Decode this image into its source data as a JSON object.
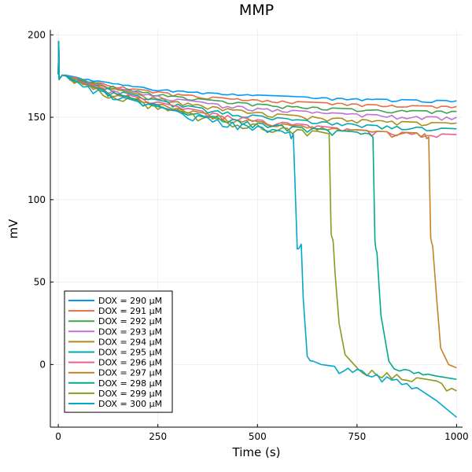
{
  "chart_data": {
    "type": "line",
    "title": "MMP",
    "xlabel": "Time (s)",
    "ylabel": "mV",
    "xlim": [
      -20,
      1015
    ],
    "ylim": [
      -38,
      203
    ],
    "xticks": [
      0,
      250,
      500,
      750,
      1000
    ],
    "xtick_labels": [
      "0",
      "250",
      "500",
      "750",
      "1000"
    ],
    "yticks": [
      0,
      50,
      100,
      150,
      200
    ],
    "ytick_labels": [
      "0",
      "50",
      "100",
      "150",
      "200"
    ],
    "grid": true,
    "legend_position": "bottom-left",
    "series": [
      {
        "name": "DOX = 290 µM",
        "color": "#009AFA",
        "x": [
          0,
          1,
          2,
          5,
          10,
          20,
          50,
          100,
          200,
          300,
          400,
          500,
          600,
          700,
          800,
          900,
          1000
        ],
        "values": [
          176,
          196,
          173,
          174,
          175.5,
          175.5,
          174,
          172,
          168.5,
          166,
          164.5,
          163.5,
          162.5,
          161.5,
          161,
          160.5,
          160
        ]
      },
      {
        "name": "DOX = 291 µM",
        "color": "#E36F47",
        "x": [
          0,
          1,
          2,
          5,
          10,
          20,
          50,
          100,
          200,
          300,
          400,
          500,
          600,
          700,
          800,
          900,
          1000
        ],
        "values": [
          176,
          196,
          173,
          174,
          175.5,
          175.5,
          173.5,
          171,
          167,
          164,
          162,
          160.5,
          159.5,
          158.5,
          157.5,
          157,
          156.5
        ]
      },
      {
        "name": "DOX = 292 µM",
        "color": "#3EA44E",
        "x": [
          0,
          1,
          2,
          5,
          10,
          20,
          50,
          100,
          200,
          300,
          400,
          500,
          600,
          700,
          800,
          900,
          1000
        ],
        "values": [
          176,
          196,
          173,
          174,
          175.5,
          175.5,
          173.5,
          170.5,
          166,
          162.5,
          160,
          158,
          156.5,
          155.5,
          154.5,
          154,
          153.5
        ]
      },
      {
        "name": "DOX = 293 µM",
        "color": "#C271D2",
        "x": [
          0,
          1,
          2,
          5,
          10,
          20,
          50,
          100,
          200,
          300,
          400,
          500,
          600,
          700,
          800,
          900,
          1000
        ],
        "values": [
          176,
          196,
          173,
          174,
          175.5,
          175,
          173,
          170,
          165,
          161,
          158,
          155.5,
          154,
          152.5,
          151.5,
          150.5,
          150
        ]
      },
      {
        "name": "DOX = 294 µM",
        "color": "#AC8D18",
        "x": [
          0,
          1,
          2,
          5,
          10,
          20,
          50,
          100,
          200,
          300,
          400,
          500,
          600,
          700,
          800,
          900,
          1000
        ],
        "values": [
          176,
          196,
          173,
          174,
          175.5,
          175,
          172.5,
          169.5,
          164,
          159.5,
          156,
          153,
          151,
          149.5,
          148,
          147,
          146.5
        ]
      },
      {
        "name": "DOX = 295 µM",
        "color": "#00A9AD",
        "x": [
          0,
          1,
          2,
          5,
          10,
          20,
          50,
          100,
          200,
          300,
          400,
          500,
          600,
          700,
          800,
          900,
          1000
        ],
        "values": [
          176,
          196,
          173,
          174,
          175.5,
          175,
          172.5,
          169,
          163,
          158,
          154,
          151,
          148.5,
          146.5,
          145,
          144,
          143
        ]
      },
      {
        "name": "DOX = 296 µM",
        "color": "#ED5E93",
        "x": [
          0,
          1,
          2,
          5,
          10,
          20,
          50,
          100,
          200,
          300,
          400,
          500,
          600,
          700,
          800,
          900,
          1000
        ],
        "values": [
          176,
          196,
          173,
          174,
          175.5,
          175,
          172,
          168.5,
          162,
          156.5,
          152,
          148.5,
          146,
          143.5,
          141.5,
          140.5,
          139.5
        ]
      },
      {
        "name": "DOX = 297 µM",
        "color": "#C68225",
        "x": [
          0,
          1,
          2,
          5,
          10,
          20,
          50,
          100,
          200,
          300,
          400,
          500,
          600,
          700,
          800,
          900,
          920,
          930,
          935,
          940,
          950,
          960,
          980,
          1000
        ],
        "values": [
          176,
          196,
          173,
          174,
          175.5,
          175,
          172,
          168,
          161.5,
          155.5,
          151,
          147.5,
          145,
          143,
          141.5,
          140.5,
          140,
          138,
          77,
          72,
          40,
          10,
          0,
          -2
        ]
      },
      {
        "name": "DOX = 298 µM",
        "color": "#00A98D",
        "x": [
          0,
          1,
          2,
          5,
          10,
          20,
          50,
          100,
          200,
          300,
          400,
          500,
          600,
          700,
          750,
          780,
          790,
          795,
          800,
          810,
          830,
          870,
          950,
          1000
        ],
        "values": [
          176,
          196,
          173,
          174,
          175.5,
          175,
          171.5,
          167.5,
          160.5,
          154.5,
          150,
          146.5,
          144,
          142,
          141,
          140,
          138,
          75,
          68,
          30,
          2,
          -3,
          -7,
          -9
        ]
      },
      {
        "name": "DOX = 299 µM",
        "color": "#8E971E",
        "x": [
          0,
          1,
          2,
          5,
          10,
          20,
          50,
          100,
          200,
          300,
          400,
          500,
          600,
          650,
          680,
          685,
          690,
          695,
          705,
          720,
          750,
          850,
          950,
          1000
        ],
        "values": [
          176,
          196,
          173,
          174,
          175.5,
          175,
          171.5,
          167,
          160,
          154,
          149,
          145.5,
          142.5,
          141.5,
          140,
          79,
          75,
          55,
          25,
          6,
          -2,
          -6,
          -10,
          -16
        ]
      },
      {
        "name": "DOX = 300 µM",
        "color": "#00A8CB",
        "x": [
          0,
          1,
          2,
          5,
          10,
          20,
          50,
          100,
          200,
          300,
          400,
          500,
          550,
          580,
          590,
          600,
          610,
          615,
          625,
          640,
          660,
          750,
          850,
          900,
          950,
          1000
        ],
        "values": [
          176,
          196,
          173,
          174,
          175.5,
          175,
          171,
          166.5,
          159.5,
          153.5,
          148.5,
          144.5,
          142,
          141,
          140,
          70,
          73,
          40,
          5,
          2,
          0,
          -3,
          -9,
          -14,
          -22,
          -32
        ]
      }
    ]
  }
}
